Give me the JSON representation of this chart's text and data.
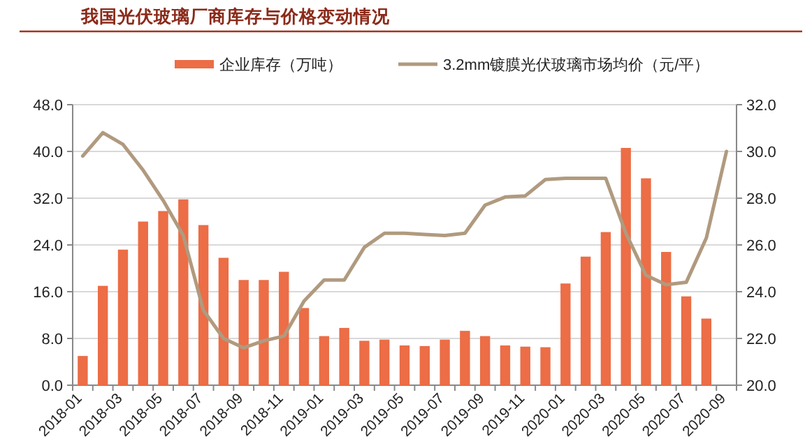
{
  "chart_data": {
    "type": "bar",
    "title": "我国光伏玻璃厂商库存与价格变动情况",
    "categories": [
      "2018-01",
      null,
      "2018-03",
      null,
      "2018-05",
      null,
      "2018-07",
      null,
      "2018-09",
      null,
      "2018-11",
      null,
      "2019-01",
      null,
      "2019-03",
      null,
      "2019-05",
      null,
      "2019-07",
      null,
      "2019-09",
      null,
      "2019-11",
      null,
      "2020-01",
      null,
      "2020-03",
      null,
      "2020-05",
      null,
      "2020-07",
      null,
      "2020-09"
    ],
    "series": [
      {
        "name": "企业库存（万吨）",
        "color": "#ec6d46",
        "values": [
          5,
          17,
          23.2,
          28,
          29.8,
          31.8,
          27.4,
          21.8,
          18,
          18,
          19.4,
          13.2,
          8.4,
          9.8,
          7.6,
          7.8,
          6.8,
          6.7,
          7.8,
          9.3,
          8.4,
          6.8,
          6.6,
          6.5,
          17.4,
          22,
          26.2,
          40.6,
          35.4,
          22.8,
          15.2,
          11.4,
          null
        ]
      },
      {
        "name": "3.2mm镀膜光伏玻璃市场均价（元/平）",
        "type": "line",
        "axis": "y2",
        "color": "#b09a7f",
        "values": [
          29.8,
          30.8,
          30.3,
          29.2,
          27.9,
          26.4,
          23.2,
          22.0,
          21.6,
          21.9,
          22.1,
          23.6,
          24.5,
          24.5,
          25.9,
          26.5,
          26.5,
          26.45,
          26.4,
          26.5,
          27.7,
          28.05,
          28.1,
          28.8,
          28.85,
          28.85,
          28.85,
          26.5,
          24.7,
          24.3,
          24.4,
          26.3,
          30.0
        ]
      }
    ],
    "ylim": [
      0,
      48
    ],
    "yticks": [
      {
        "value": 0,
        "label": "0.0"
      },
      {
        "value": 8,
        "label": "8.0"
      },
      {
        "value": 16,
        "label": "16.0"
      },
      {
        "value": 24,
        "label": "24.0"
      },
      {
        "value": 32,
        "label": "32.0"
      },
      {
        "value": 40,
        "label": "40.0"
      },
      {
        "value": 48,
        "label": "48.0"
      }
    ],
    "y2lim": [
      20,
      32
    ],
    "y2ticks": [
      {
        "value": 20,
        "label": "20.0"
      },
      {
        "value": 22,
        "label": "22.0"
      },
      {
        "value": 24,
        "label": "24.0"
      },
      {
        "value": 26,
        "label": "26.0"
      },
      {
        "value": 28,
        "label": "28.0"
      },
      {
        "value": 30,
        "label": "30.0"
      },
      {
        "value": 32,
        "label": "32.0"
      }
    ],
    "grid": "y",
    "legend": "top"
  }
}
